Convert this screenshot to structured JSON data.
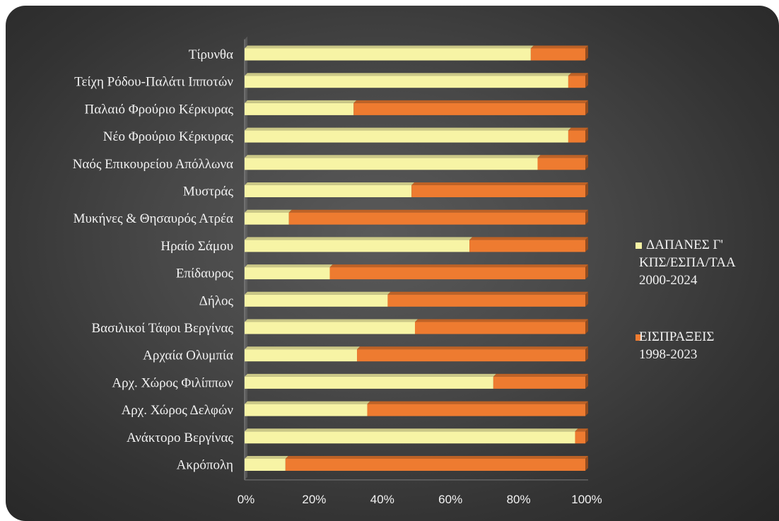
{
  "chart_data": {
    "type": "bar",
    "orientation": "horizontal",
    "stacked": "percent",
    "categories": [
      "Τίρυνθα",
      "Τείχη Ρόδου-Παλάτι Ιπποτών",
      "Παλαιό Φρούριο Κέρκυρας",
      "Νέο Φρούριο Κέρκυρας",
      "Ναός Επικουρείου Απόλλωνα",
      "Μυστράς",
      "Μυκήνες & Θησαυρός Ατρέα",
      "Ηραίο Σάμου",
      "Επίδαυρος",
      "Δήλος",
      "Βασιλικοί Τάφοι Βεργίνας",
      "Αρχαία Ολυμπία",
      "Αρχ. Χώρος Φιλίππων",
      "Αρχ. Χώρος Δελφών",
      "Ανάκτορο Βεργίνας",
      "Ακρόπολη"
    ],
    "series": [
      {
        "name": "ΔΑΠΑΝΕΣ Γ' ΚΠΣ/ΕΣΠΑ/ΤΑΑ 2000-2024",
        "name_lines": [
          "ΔΑΠΑΝΕΣ Γ'",
          "ΚΠΣ/ΕΣΠΑ/ΤΑΑ",
          "2000-2024"
        ],
        "color": "#f7f4a5",
        "values": [
          84,
          95,
          32,
          95,
          86,
          49,
          13,
          66,
          25,
          42,
          50,
          33,
          73,
          36,
          97,
          12
        ]
      },
      {
        "name": "ΕΙΣΠΡΑΞΕΙΣ 1998-2023",
        "name_lines": [
          "ΕΙΣΠΡΑΞΕΙΣ",
          "1998-2023"
        ],
        "color": "#ee7b30",
        "values": [
          16,
          5,
          68,
          5,
          14,
          51,
          87,
          34,
          75,
          58,
          50,
          67,
          27,
          64,
          3,
          88
        ]
      }
    ],
    "x_ticks": [
      "0%",
      "20%",
      "40%",
      "60%",
      "80%",
      "100%"
    ],
    "xlim": [
      0,
      100
    ],
    "grid": false,
    "legend_position": "right"
  }
}
